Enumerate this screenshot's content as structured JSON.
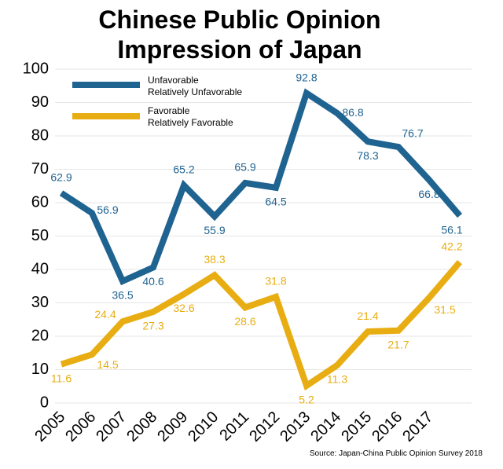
{
  "chart_data": {
    "type": "line",
    "title": "Chinese Public Opinion\nImpression of Japan",
    "source": "Source: Japan-China Public Opinion Survey 2018",
    "categories": [
      "2005",
      "2006",
      "2007",
      "2008",
      "2009",
      "2010",
      "2011",
      "2012",
      "2013",
      "2014",
      "2015",
      "2016",
      "2017",
      null
    ],
    "series": [
      {
        "name": "Unfavorable\nRelatively Unfavorable",
        "color": "#1f6391",
        "values": [
          62.9,
          56.9,
          36.5,
          40.6,
          65.2,
          55.9,
          65.9,
          64.5,
          92.8,
          86.8,
          78.3,
          76.7,
          66.8,
          56.1
        ]
      },
      {
        "name": "Favorable\nRelatively Favorable",
        "color": "#e8ad12",
        "values": [
          11.6,
          14.5,
          24.4,
          27.3,
          32.6,
          38.3,
          28.6,
          31.8,
          5.2,
          11.3,
          21.4,
          21.7,
          31.5,
          42.2
        ]
      }
    ],
    "ylim": [
      0,
      100
    ],
    "yticks": [
      0,
      10,
      20,
      30,
      40,
      50,
      60,
      70,
      80,
      90,
      100
    ],
    "grid": true
  }
}
